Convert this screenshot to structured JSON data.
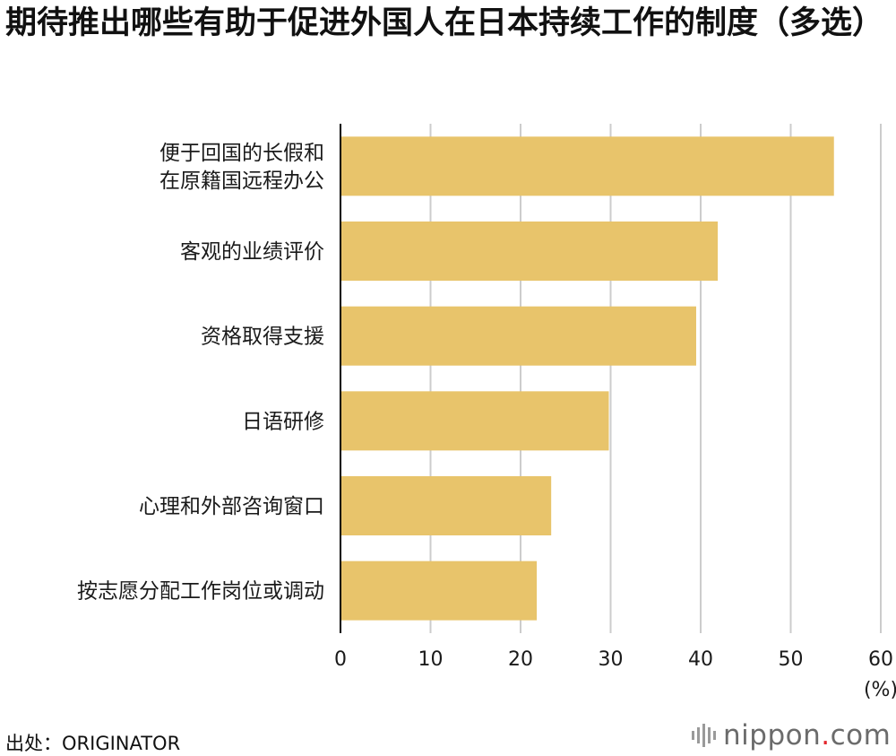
{
  "title": "期待推出哪些有助于促进外国人在日本持续工作的制度（多选）",
  "source": "出处：ORIGINATOR",
  "logo": {
    "brand": "nippon",
    "dot": ".",
    "suffix": "com"
  },
  "colors": {
    "bar": "#e8c46b",
    "grid": "#cccccc",
    "axis": "#000000"
  },
  "chart_data": {
    "type": "bar",
    "orientation": "horizontal",
    "categories": [
      [
        "便于回国的长假和",
        "在原籍国远程办公"
      ],
      [
        "客观的业绩评价"
      ],
      [
        "资格取得支援"
      ],
      [
        "日语研修"
      ],
      [
        "心理和外部咨询窗口"
      ],
      [
        "按志愿分配工作岗位或调动"
      ]
    ],
    "values": [
      54.8,
      41.9,
      39.5,
      29.8,
      23.4,
      21.8
    ],
    "xlim": [
      0,
      60
    ],
    "xticks": [
      0,
      10,
      20,
      30,
      40,
      50,
      60
    ],
    "xlabel": "(%)",
    "grid": true
  }
}
